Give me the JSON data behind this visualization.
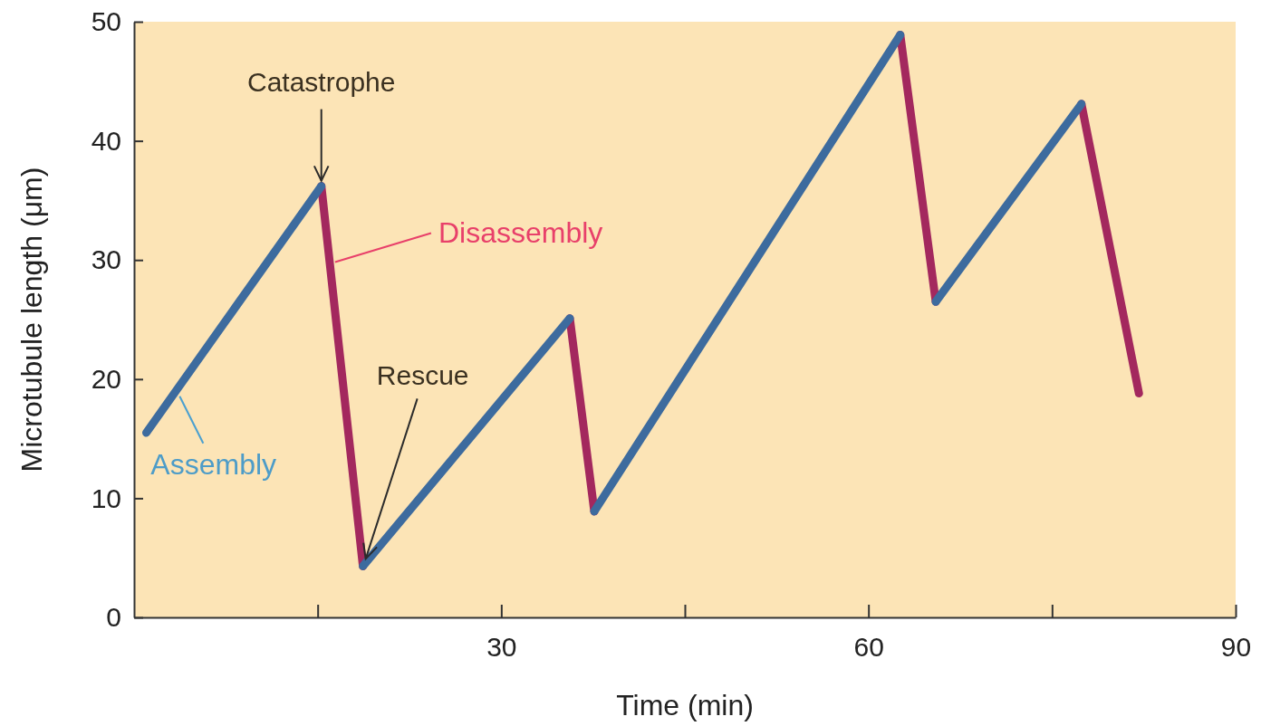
{
  "chart_data": {
    "type": "line",
    "xlabel": "Time (min)",
    "ylabel": "Microtubule length (μm)",
    "xlim": [
      0,
      90
    ],
    "xticks": [
      {
        "value": 15,
        "label": null
      },
      30,
      {
        "value": 45,
        "label": null
      },
      60,
      {
        "value": 75,
        "label": null
      },
      90
    ],
    "ylim": [
      0,
      50
    ],
    "yticks": [
      0,
      10,
      20,
      30,
      40,
      50
    ],
    "grid": false,
    "marker": "none",
    "line_style": "solid",
    "series": [
      {
        "name": "Disassembly",
        "color": "#a3285e",
        "x": [
          15.3,
          18.7,
          27,
          35.6,
          37.6,
          50,
          62.6,
          65.5,
          70,
          77.4,
          82.1
        ],
        "values": [
          36.2,
          4.3,
          null,
          25.1,
          8.9,
          null,
          48.9,
          26.5,
          null,
          43.1,
          18.8
        ]
      },
      {
        "name": "Assembly",
        "color": "#3d6b9e",
        "x": [
          1.0,
          15.3,
          16,
          18.7,
          35.6,
          36,
          37.6,
          62.6,
          64,
          65.5,
          77.4
        ],
        "values": [
          15.5,
          36.2,
          null,
          4.3,
          25.1,
          null,
          8.9,
          48.9,
          null,
          26.5,
          43.1
        ]
      }
    ],
    "annotations": [
      {
        "text": "Catastrophe",
        "x": 15.3,
        "y": 36.2
      },
      {
        "text": "Rescue",
        "x": 18.7,
        "y": 4.3
      }
    ]
  }
}
